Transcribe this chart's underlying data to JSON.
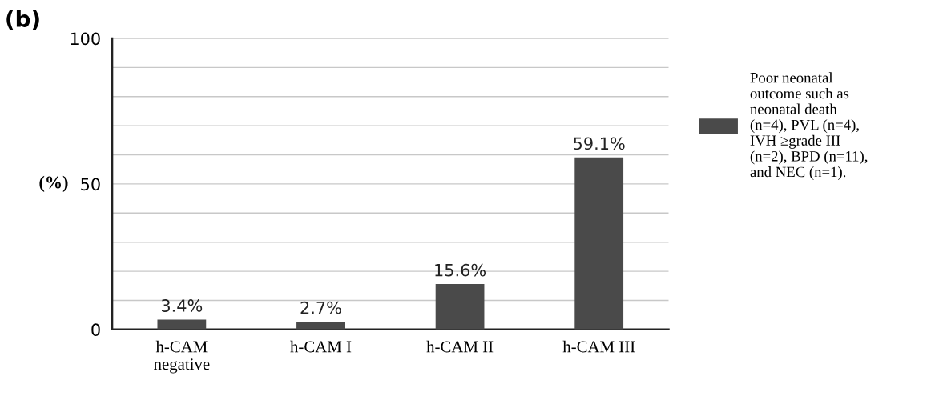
{
  "chart_data": {
    "type": "bar",
    "title": "(b)",
    "ylabel": "(%)",
    "categories": [
      "h-CAM\nnegative",
      "h-CAM I",
      "h-CAM II",
      "h-CAM III"
    ],
    "series": [
      {
        "name": "Poor neonatal\noutcome such as\nneonatal death\n(n=4), PVL (n=4),\nIVH ≥grade III\n(n=2), BPD (n=11),\nand NEC (n=1).",
        "color": "#4a4a4a",
        "values": [
          3.4,
          2.7,
          15.6,
          59.1
        ],
        "value_labels": [
          "3.4%",
          "2.7%",
          "15.6%",
          "59.1%"
        ]
      }
    ],
    "ylim": [
      0,
      100
    ],
    "yticks": [
      0,
      {
        "value": 10,
        "label": null
      },
      {
        "value": 20,
        "label": null
      },
      {
        "value": 30,
        "label": null
      },
      {
        "value": 40,
        "label": null
      },
      50,
      {
        "value": 60,
        "label": null
      },
      {
        "value": 70,
        "label": null
      },
      {
        "value": 80,
        "label": null
      },
      {
        "value": 90,
        "label": null
      },
      100
    ],
    "grid": "y",
    "legend": "right"
  }
}
